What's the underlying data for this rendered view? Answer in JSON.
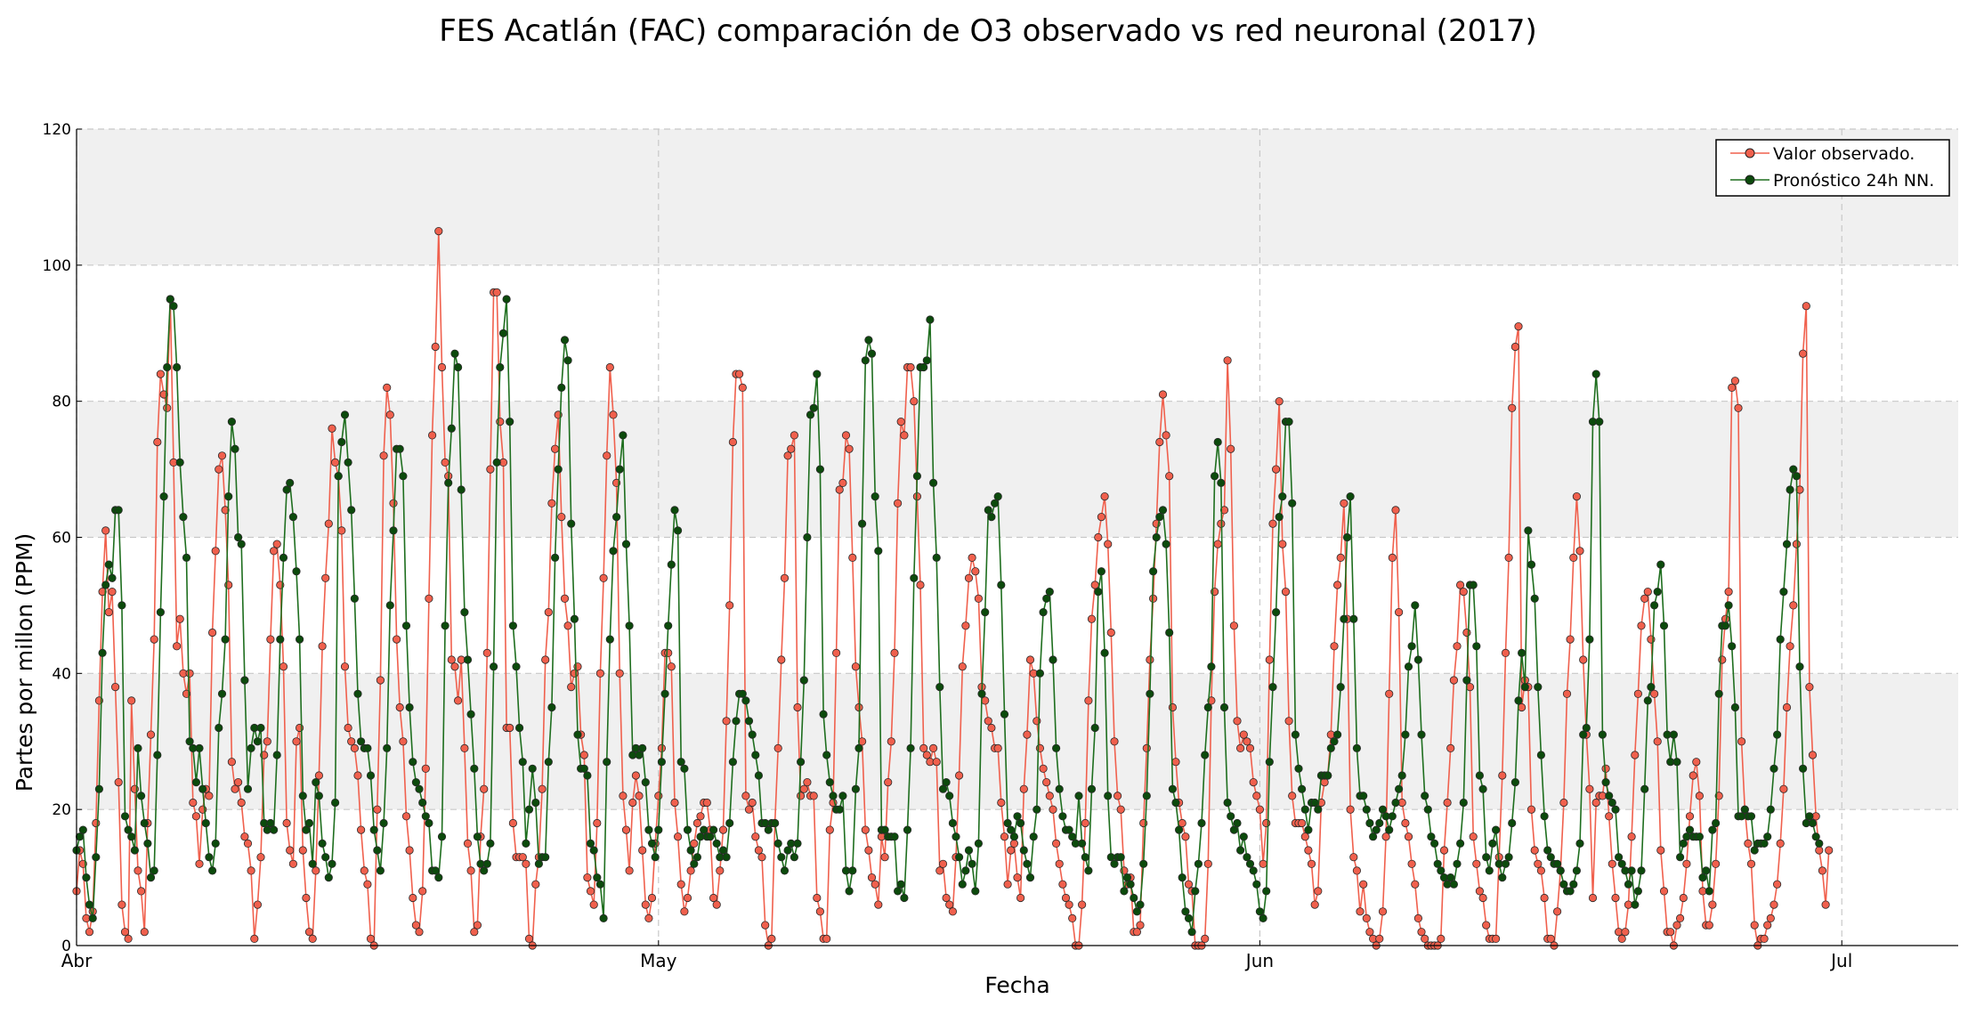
{
  "chart_data": {
    "type": "line",
    "title": "FES Acatlán (FAC) comparación de O3 observado vs red neuronal (2017)",
    "xlabel": "Fecha",
    "ylabel": "Partes por millon (PPM)",
    "ylim": [
      0,
      120
    ],
    "yticks": [
      0,
      20,
      40,
      60,
      80,
      100,
      120
    ],
    "xlim": [
      "2017-04-01",
      "2017-07-07"
    ],
    "xticks": [
      {
        "date": "2017-04-01",
        "label": "Abr"
      },
      {
        "date": "2017-05-01",
        "label": "May"
      },
      {
        "date": "2017-06-01",
        "label": "Jun"
      },
      {
        "date": "2017-07-01",
        "label": "Jul"
      }
    ],
    "grid": true,
    "legend_position": "top-right",
    "sample_interval": "4h",
    "series": [
      {
        "name": "Valor observado.",
        "color": "#f0604d",
        "marker_color": "#f0604d",
        "start": "2017-04-01T00:00",
        "values": [
          8,
          14,
          12,
          4,
          2,
          5,
          18,
          36,
          52,
          61,
          49,
          52,
          38,
          24,
          6,
          2,
          1,
          36,
          23,
          11,
          8,
          2,
          18,
          31,
          45,
          74,
          84,
          81,
          79,
          95,
          71,
          44,
          48,
          40,
          37,
          40,
          21,
          19,
          12,
          20,
          23,
          22,
          46,
          58,
          70,
          72,
          64,
          53,
          27,
          23,
          24,
          21,
          16,
          15,
          11,
          1,
          6,
          13,
          28,
          30,
          45,
          58,
          59,
          53,
          41,
          18,
          14,
          12,
          30,
          32,
          14,
          7,
          2,
          1,
          11,
          25,
          44,
          54,
          62,
          76,
          71,
          69,
          61,
          41,
          32,
          30,
          29,
          25,
          17,
          11,
          9,
          1,
          0,
          20,
          39,
          72,
          82,
          78,
          65,
          45,
          35,
          30,
          19,
          14,
          7,
          3,
          2,
          8,
          26,
          51,
          75,
          88,
          105,
          85,
          71,
          69,
          42,
          41,
          36,
          42,
          29,
          15,
          11,
          2,
          3,
          16,
          23,
          43,
          70,
          96,
          96,
          77,
          71,
          32,
          32,
          18,
          13,
          13,
          13,
          12,
          1,
          0,
          9,
          13,
          23,
          42,
          49,
          65,
          73,
          78,
          63,
          51,
          47,
          38,
          40,
          41,
          31,
          28,
          10,
          8,
          6,
          18,
          40,
          54,
          72,
          85,
          78,
          68,
          40,
          22,
          17,
          11,
          21,
          25,
          22,
          14,
          6,
          4,
          7,
          15,
          22,
          29,
          43,
          43,
          41,
          21,
          16,
          9,
          5,
          7,
          11,
          15,
          18,
          19,
          21,
          21,
          17,
          7,
          6,
          11,
          17,
          33,
          50,
          74,
          84,
          84,
          82,
          22,
          20,
          21,
          16,
          14,
          13,
          3,
          0,
          1,
          18,
          29,
          42,
          54,
          72,
          73,
          75,
          35,
          22,
          23,
          24,
          22,
          22,
          7,
          5,
          1,
          1,
          17,
          21,
          43,
          67,
          68,
          75,
          73,
          57,
          41,
          35,
          30,
          17,
          14,
          10,
          9,
          6,
          16,
          13,
          24,
          30,
          43,
          65,
          77,
          75,
          85,
          85,
          80,
          66,
          53,
          29,
          28,
          27,
          29,
          27,
          11,
          12,
          7,
          6,
          5,
          13,
          25,
          41,
          47,
          54,
          57,
          55,
          51,
          38,
          36,
          33,
          32,
          29,
          29,
          21,
          16,
          9,
          14,
          15,
          10,
          7,
          23,
          31,
          42,
          40,
          33,
          29,
          26,
          24,
          22,
          20,
          15,
          12,
          9,
          7,
          6,
          4,
          0,
          0,
          6,
          18,
          36,
          48,
          53,
          60,
          63,
          66,
          59,
          46,
          30,
          22,
          20,
          11,
          9,
          10,
          2,
          2,
          3,
          18,
          29,
          42,
          51,
          62,
          74,
          81,
          75,
          69,
          35,
          27,
          21,
          18,
          16,
          9,
          8,
          0,
          0,
          0,
          1,
          12,
          36,
          52,
          59,
          62,
          64,
          86,
          73,
          47,
          33,
          29,
          31,
          30,
          29,
          24,
          22,
          20,
          12,
          18,
          42,
          62,
          70,
          80,
          59,
          52,
          33,
          22,
          18,
          18,
          18,
          16,
          14,
          12,
          6,
          8,
          21,
          24,
          25,
          31,
          44,
          53,
          57,
          65,
          48,
          20,
          13,
          11,
          5,
          9,
          4,
          2,
          1,
          0,
          1,
          5,
          16,
          37,
          57,
          64,
          49,
          21,
          18,
          16,
          12,
          9,
          4,
          2,
          1,
          0,
          0,
          0,
          0,
          1,
          14,
          21,
          29,
          39,
          44,
          53,
          52,
          46,
          38,
          16,
          12,
          8,
          7,
          3,
          1,
          1,
          1,
          13,
          25,
          43,
          57,
          79,
          88,
          91,
          35,
          39,
          38,
          20,
          14,
          12,
          11,
          7,
          1,
          1,
          0,
          5,
          11,
          21,
          37,
          45,
          57,
          66,
          58,
          42,
          31,
          23,
          7,
          21,
          22,
          22,
          26,
          19,
          12,
          7,
          2,
          1,
          2,
          6,
          16,
          28,
          37,
          47,
          51,
          52,
          45,
          37,
          30,
          14,
          8,
          2,
          2,
          0,
          3,
          4,
          7,
          12,
          19,
          25,
          27,
          22,
          8,
          3,
          3,
          6,
          12,
          22,
          42,
          48,
          52,
          82,
          83,
          79,
          30,
          20,
          15,
          12,
          3,
          0,
          1,
          1,
          3,
          4,
          6,
          9,
          15,
          23,
          35,
          44,
          50,
          59,
          67,
          87,
          94,
          38,
          28,
          19,
          14,
          11,
          6,
          14
        ]
      },
      {
        "name": "Pronóstico 24h NN.",
        "color": "#1e6e1e",
        "marker_color": "#0c4a0c",
        "start": "2017-04-01T00:00",
        "values": [
          14,
          16,
          17,
          10,
          6,
          4,
          13,
          23,
          43,
          53,
          56,
          54,
          64,
          64,
          50,
          19,
          17,
          16,
          14,
          29,
          22,
          18,
          15,
          10,
          11,
          28,
          49,
          66,
          85,
          95,
          94,
          85,
          71,
          63,
          57,
          30,
          29,
          24,
          29,
          23,
          18,
          13,
          11,
          15,
          32,
          37,
          45,
          66,
          77,
          73,
          60,
          59,
          39,
          23,
          29,
          32,
          30,
          32,
          18,
          17,
          18,
          17,
          28,
          45,
          57,
          67,
          68,
          63,
          55,
          45,
          22,
          17,
          18,
          12,
          24,
          22,
          15,
          13,
          10,
          12,
          21,
          69,
          74,
          78,
          71,
          64,
          51,
          37,
          30,
          29,
          29,
          25,
          17,
          14,
          11,
          18,
          29,
          50,
          61,
          73,
          73,
          69,
          47,
          35,
          27,
          24,
          23,
          21,
          19,
          18,
          11,
          11,
          10,
          16,
          47,
          68,
          76,
          87,
          85,
          67,
          49,
          42,
          34,
          26,
          16,
          12,
          11,
          12,
          15,
          41,
          71,
          85,
          90,
          95,
          77,
          47,
          41,
          32,
          27,
          15,
          20,
          26,
          21,
          12,
          13,
          13,
          27,
          35,
          57,
          70,
          82,
          89,
          86,
          62,
          48,
          31,
          26,
          26,
          25,
          15,
          14,
          10,
          9,
          4,
          27,
          45,
          58,
          63,
          70,
          75,
          59,
          47,
          28,
          29,
          28,
          29,
          24,
          17,
          15,
          13,
          17,
          27,
          37,
          47,
          56,
          64,
          61,
          27,
          26,
          17,
          14,
          12,
          13,
          16,
          17,
          16,
          16,
          17,
          15,
          13,
          14,
          13,
          18,
          27,
          33,
          37,
          37,
          36,
          33,
          31,
          28,
          25,
          18,
          18,
          17,
          18,
          18,
          15,
          13,
          11,
          14,
          15,
          13,
          15,
          27,
          39,
          60,
          78,
          79,
          84,
          70,
          34,
          28,
          24,
          22,
          20,
          20,
          22,
          11,
          8,
          11,
          23,
          29,
          62,
          86,
          89,
          87,
          66,
          58,
          17,
          17,
          16,
          16,
          16,
          8,
          9,
          7,
          17,
          29,
          54,
          69,
          85,
          85,
          86,
          92,
          68,
          57,
          38,
          23,
          24,
          22,
          18,
          16,
          13,
          9,
          11,
          14,
          12,
          8,
          15,
          37,
          49,
          64,
          63,
          65,
          66,
          53,
          34,
          18,
          17,
          16,
          19,
          18,
          14,
          12,
          10,
          16,
          20,
          40,
          49,
          51,
          52,
          42,
          29,
          23,
          19,
          17,
          17,
          16,
          15,
          22,
          15,
          13,
          11,
          23,
          32,
          52,
          55,
          43,
          22,
          13,
          12,
          13,
          13,
          8,
          10,
          9,
          7,
          5,
          6,
          12,
          22,
          37,
          55,
          60,
          63,
          64,
          59,
          46,
          23,
          21,
          17,
          10,
          5,
          4,
          2,
          8,
          12,
          18,
          28,
          35,
          41,
          69,
          74,
          68,
          35,
          21,
          19,
          17,
          18,
          14,
          16,
          13,
          12,
          11,
          9,
          5,
          4,
          8,
          27,
          38,
          49,
          63,
          66,
          77,
          77,
          65,
          31,
          26,
          23,
          20,
          17,
          21,
          21,
          20,
          25,
          25,
          25,
          29,
          30,
          31,
          38,
          48,
          60,
          66,
          48,
          29,
          22,
          22,
          20,
          18,
          16,
          17,
          18,
          20,
          19,
          17,
          19,
          21,
          23,
          25,
          31,
          41,
          44,
          50,
          42,
          31,
          22,
          20,
          16,
          15,
          12,
          11,
          10,
          9,
          10,
          9,
          12,
          15,
          21,
          39,
          53,
          53,
          44,
          25,
          23,
          13,
          11,
          15,
          17,
          12,
          10,
          12,
          13,
          18,
          24,
          36,
          43,
          38,
          61,
          56,
          51,
          38,
          28,
          19,
          14,
          13,
          12,
          12,
          11,
          9,
          8,
          8,
          9,
          11,
          15,
          31,
          32,
          45,
          77,
          84,
          77,
          31,
          24,
          22,
          21,
          20,
          13,
          12,
          11,
          9,
          11,
          6,
          8,
          11,
          23,
          36,
          38,
          50,
          52,
          56,
          47,
          31,
          27,
          31,
          27,
          13,
          15,
          16,
          17,
          16,
          16,
          16,
          10,
          11,
          8,
          17,
          18,
          37,
          47,
          47,
          50,
          44,
          35,
          19,
          19,
          20,
          19,
          19,
          14,
          15,
          15,
          15,
          16,
          20,
          26,
          31,
          45,
          52,
          59,
          67,
          70,
          69,
          41,
          26,
          18,
          19,
          18,
          16,
          15
        ]
      }
    ]
  }
}
